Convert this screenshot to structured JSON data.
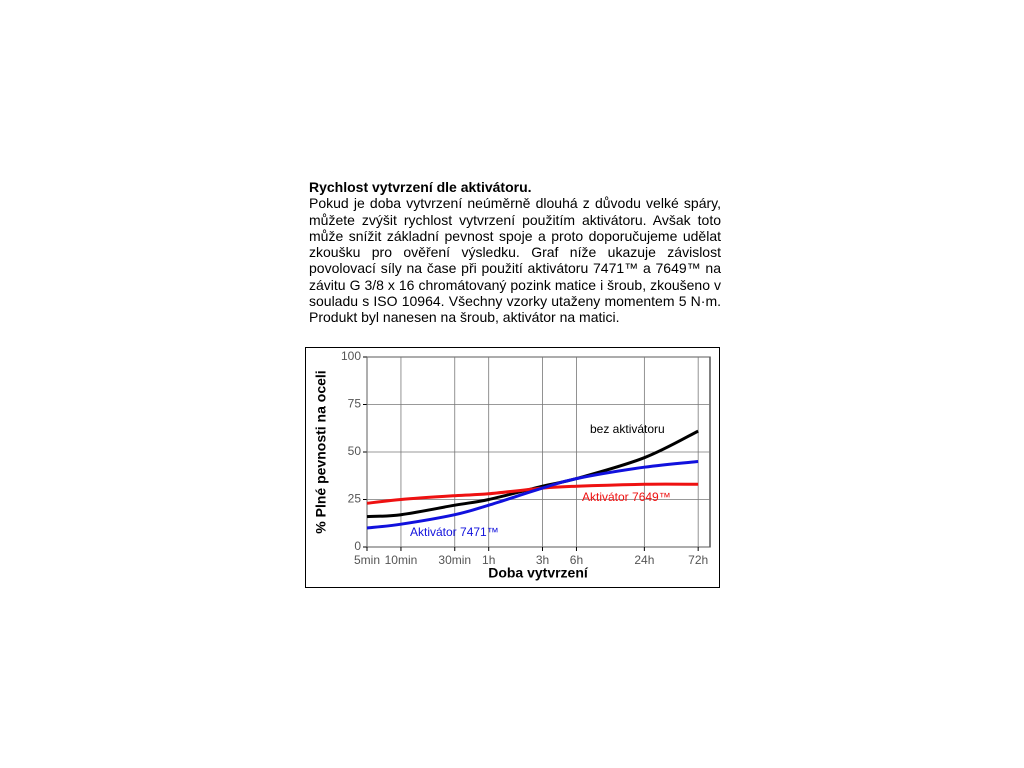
{
  "document": {
    "heading": "Rychlost vytvrzení dle aktivátoru.",
    "paragraph": "Pokud je doba vytvrzení neúměrně dlouhá z důvodu velké spáry, můžete zvýšit rychlost vytvrzení použitím aktivátoru. Avšak toto může snížit základní pevnost spoje a proto doporučujeme udělat zkoušku pro ověření výsledku. Graf níže ukazuje závislost povolovací síly na čase při použití aktivátoru 7471™ a 7649™ na závitu G 3/8 x 16 chromátovaný pozink matice i šroub, zkoušeno v souladu s ISO 10964. Všechny vzorky utaženy momentem 5 N·m. Produkt byl nanesen na šroub, aktivátor na matici."
  },
  "chart_data": {
    "type": "line",
    "x_label": "Doba vytvrzení",
    "y_label": "% Plné pevnosti na oceli",
    "x": [
      5,
      10,
      30,
      60,
      180,
      360,
      1440,
      4320
    ],
    "xscale": "log",
    "xlim": [
      5,
      5500
    ],
    "xticks": [
      {
        "value": 5,
        "label": "5min"
      },
      {
        "value": 10,
        "label": "10min"
      },
      {
        "value": 30,
        "label": "30min"
      },
      {
        "value": 60,
        "label": "1h"
      },
      {
        "value": 180,
        "label": "3h"
      },
      {
        "value": 360,
        "label": "6h"
      },
      {
        "value": 1440,
        "label": "24h"
      },
      {
        "value": 4320,
        "label": "72h"
      }
    ],
    "ylim": [
      0,
      100
    ],
    "yticks": [
      0,
      25,
      50,
      75,
      100
    ],
    "grid": true,
    "series": [
      {
        "name": "bez aktivátoru",
        "color": "#000000",
        "values": [
          16,
          17,
          22,
          25,
          32,
          36,
          47,
          61
        ]
      },
      {
        "name": "Aktivátor 7649™",
        "color": "#ee1111",
        "values": [
          23,
          25,
          27,
          28,
          31,
          32,
          33,
          33
        ]
      },
      {
        "name": "Aktivátor 7471™",
        "color": "#1111dd",
        "values": [
          10,
          12,
          17,
          22,
          31,
          36,
          42,
          45
        ]
      }
    ]
  }
}
